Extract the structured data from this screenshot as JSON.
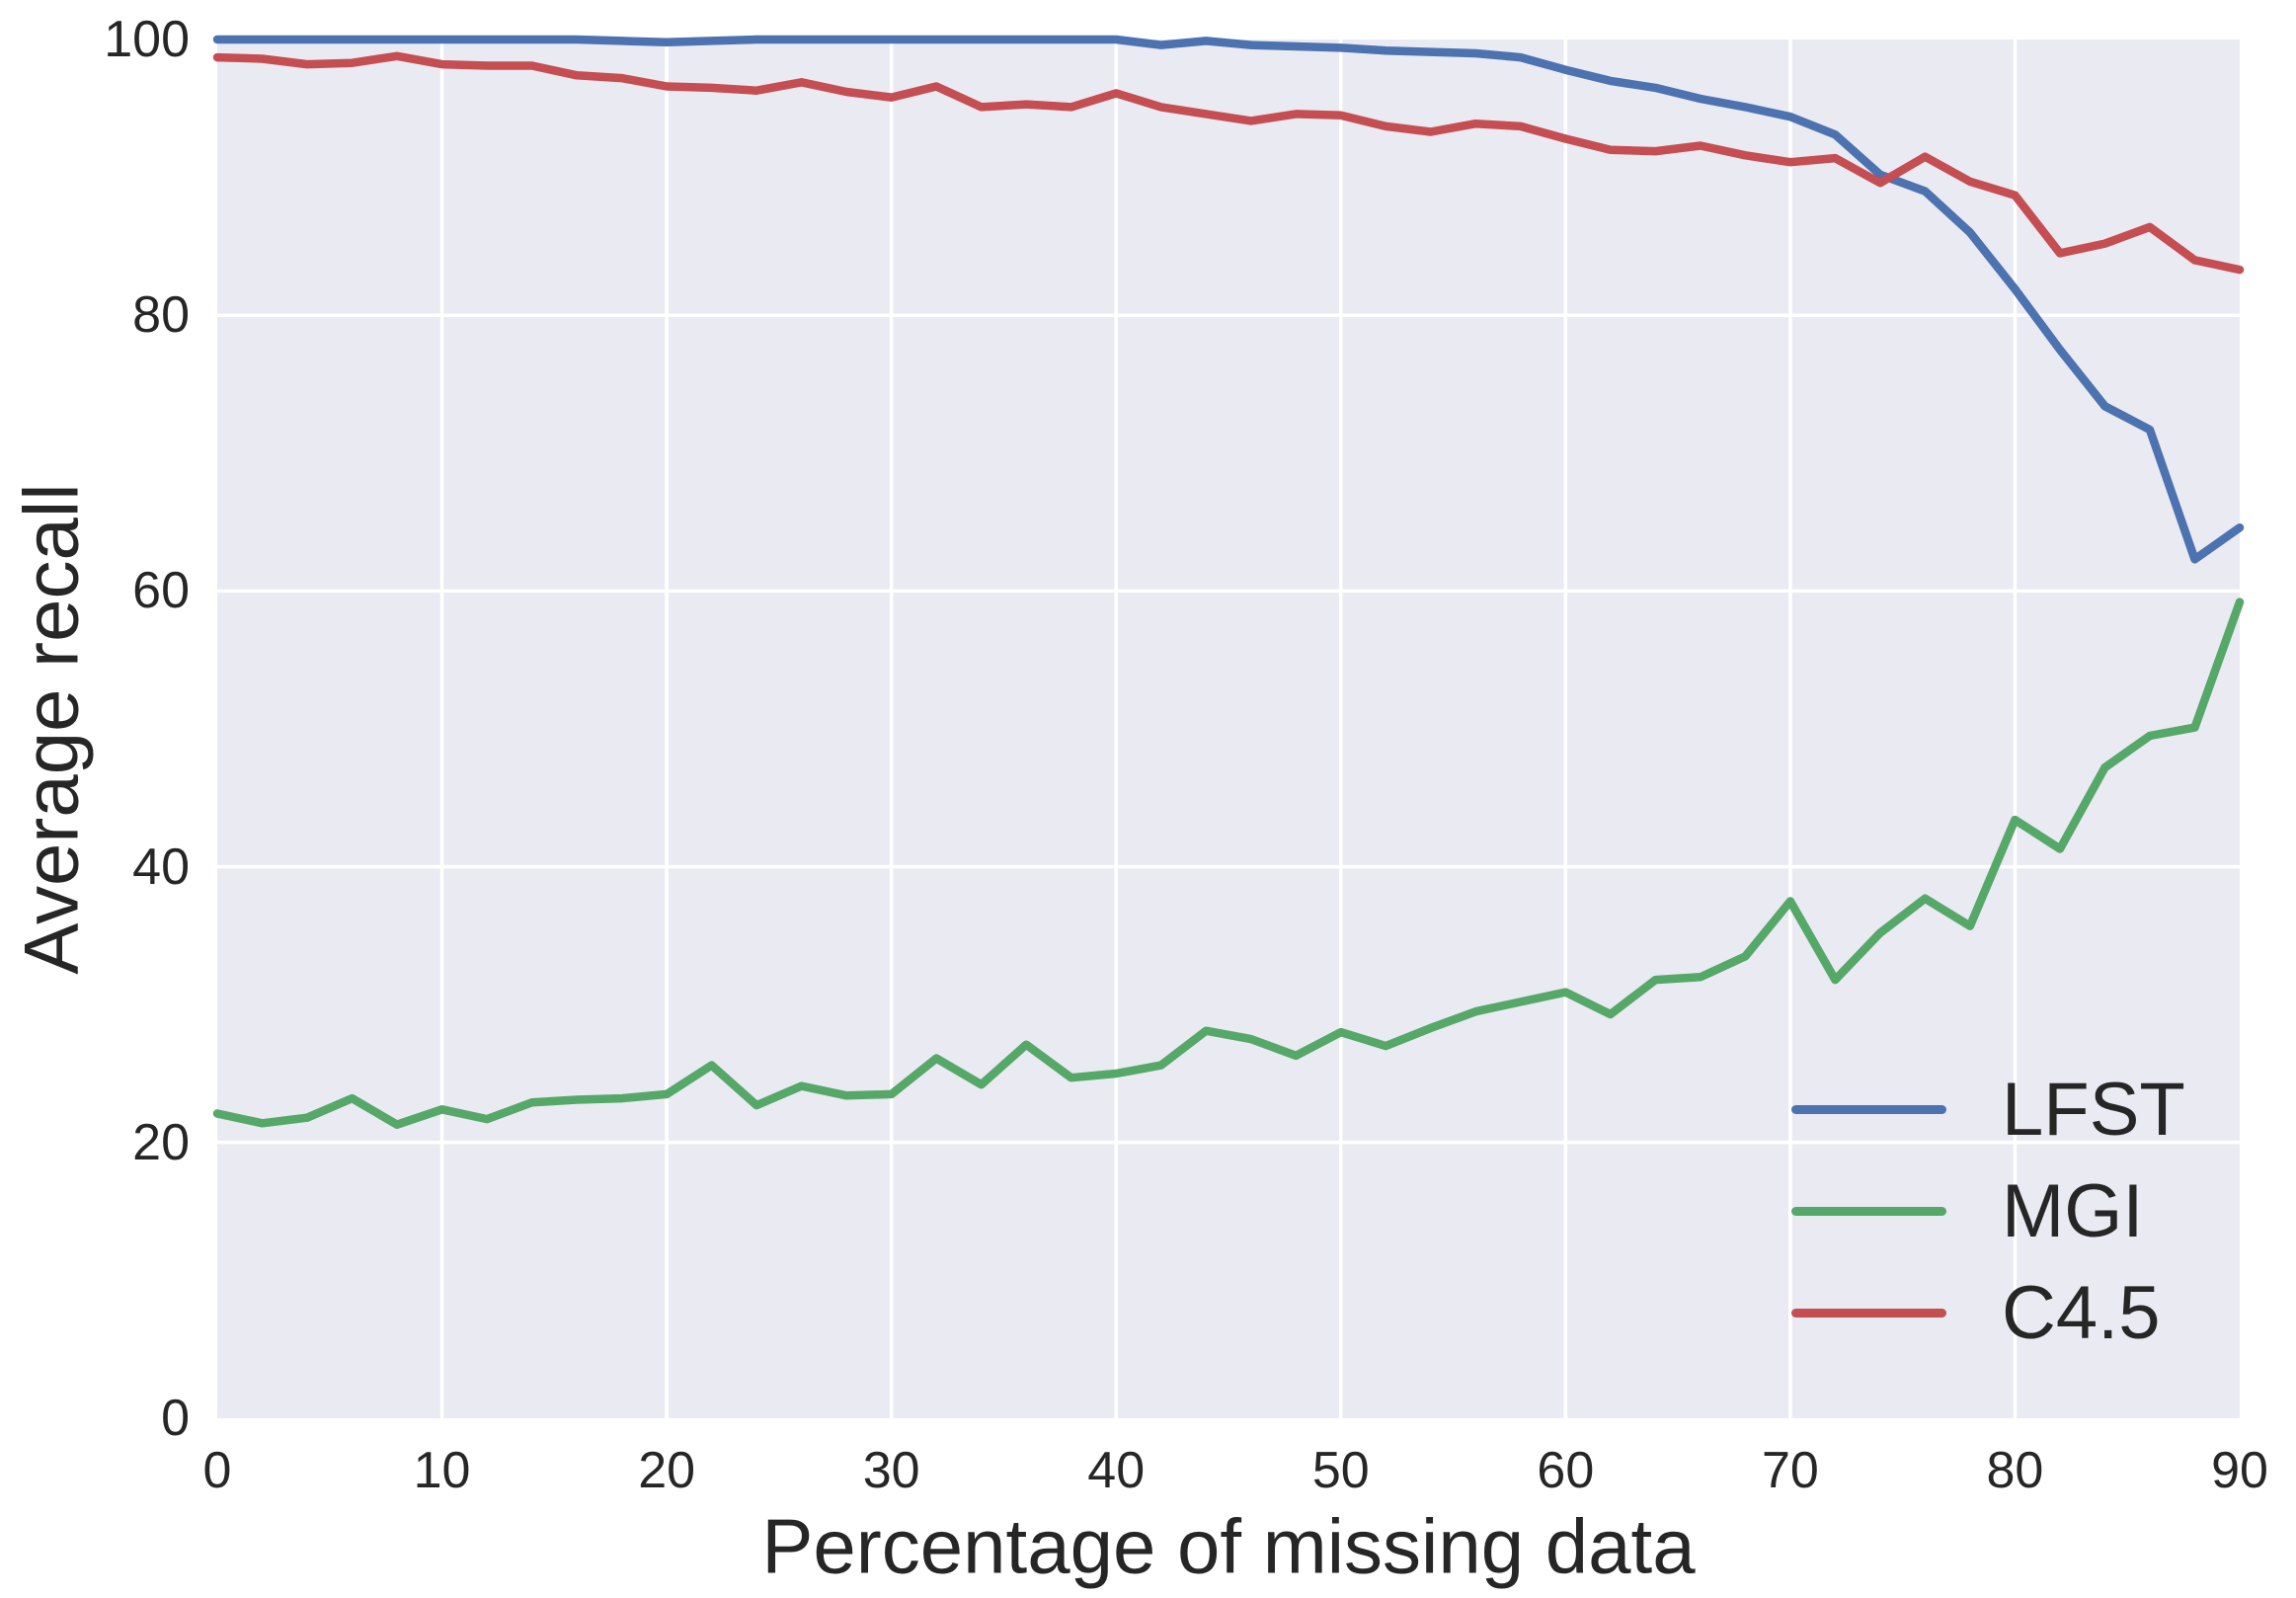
{
  "chart_data": {
    "type": "line",
    "title": "",
    "xlabel": "Percentage of missing data",
    "ylabel": "Average recall",
    "xlim": [
      0,
      90
    ],
    "ylim": [
      0,
      100
    ],
    "x_ticks": [
      0,
      10,
      20,
      30,
      40,
      50,
      60,
      70,
      80,
      90
    ],
    "y_ticks": [
      0,
      20,
      40,
      60,
      80,
      100
    ],
    "grid": true,
    "grid_color": "#ffffff",
    "plot_background": "#EAEAF2",
    "text_color": "#262626",
    "legend_position": "lower right",
    "x": [
      0,
      2,
      4,
      6,
      8,
      10,
      12,
      14,
      16,
      18,
      20,
      22,
      24,
      26,
      28,
      30,
      32,
      34,
      36,
      38,
      40,
      42,
      44,
      46,
      48,
      50,
      52,
      54,
      56,
      58,
      60,
      62,
      64,
      66,
      68,
      70,
      72,
      74,
      76,
      78,
      80,
      82,
      84,
      86,
      88,
      90
    ],
    "series": [
      {
        "name": "LFST",
        "color": "#4C72B0",
        "values": [
          100,
          100,
          100,
          100,
          100,
          100,
          100,
          100,
          100,
          99.9,
          99.8,
          99.9,
          100,
          100,
          100,
          100,
          100,
          100,
          100,
          100,
          100,
          99.6,
          99.9,
          99.6,
          99.5,
          99.4,
          99.2,
          99.1,
          99.0,
          98.7,
          97.8,
          97.0,
          96.5,
          95.7,
          95.1,
          94.4,
          93.1,
          90.2,
          89.0,
          86.0,
          81.9,
          77.5,
          73.4,
          71.7,
          62.3,
          64.6
        ]
      },
      {
        "name": "MGI",
        "color": "#55A868",
        "values": [
          22.1,
          21.4,
          21.8,
          23.2,
          21.3,
          22.4,
          21.7,
          22.9,
          23.1,
          23.2,
          23.5,
          25.6,
          22.7,
          24.1,
          23.4,
          23.5,
          26.1,
          24.2,
          27.1,
          24.7,
          25.0,
          25.6,
          28.1,
          27.5,
          26.3,
          28.0,
          27.0,
          28.3,
          29.5,
          30.2,
          30.9,
          29.3,
          31.8,
          32.0,
          33.5,
          37.5,
          31.8,
          35.2,
          37.7,
          35.7,
          43.4,
          41.3,
          47.2,
          49.5,
          50.1,
          59.2
        ]
      },
      {
        "name": "C4.5",
        "color": "#C44E52",
        "values": [
          98.7,
          98.6,
          98.2,
          98.3,
          98.8,
          98.2,
          98.1,
          98.1,
          97.4,
          97.2,
          96.6,
          96.5,
          96.3,
          96.9,
          96.2,
          95.8,
          96.6,
          95.1,
          95.3,
          95.1,
          96.1,
          95.1,
          94.6,
          94.1,
          94.6,
          94.5,
          93.7,
          93.3,
          93.9,
          93.7,
          92.8,
          92.0,
          91.9,
          92.3,
          91.6,
          91.1,
          91.4,
          89.6,
          91.5,
          89.7,
          88.7,
          84.5,
          85.2,
          86.4,
          84.0,
          83.3
        ]
      }
    ]
  }
}
